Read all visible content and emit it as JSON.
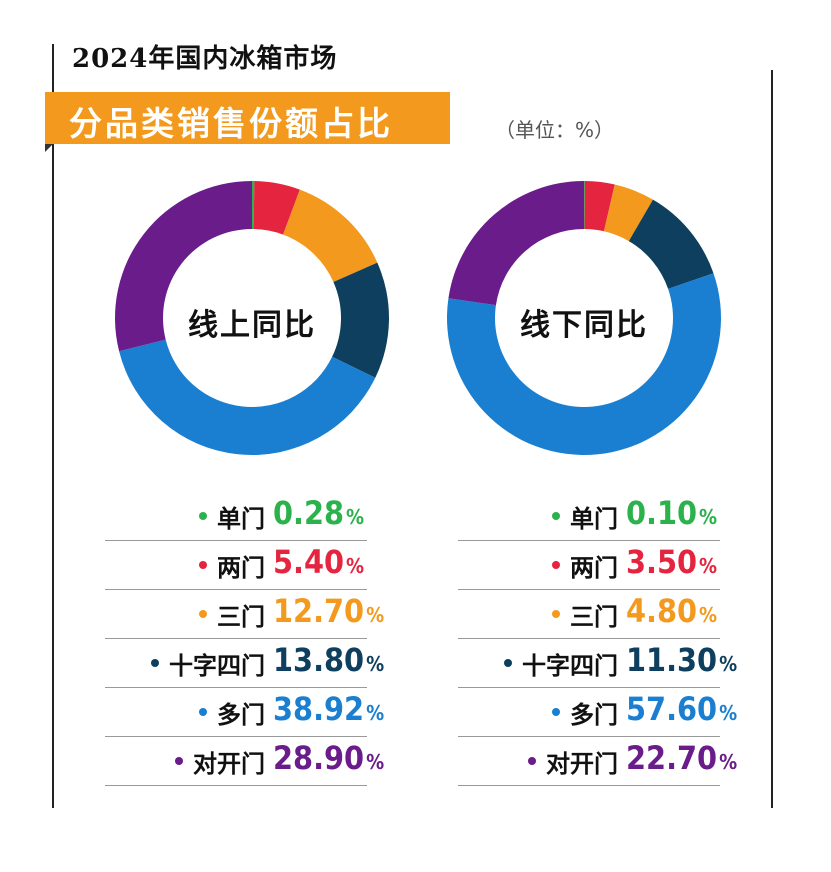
{
  "header": {
    "title": "2024年国内冰箱市场",
    "banner": "分品类销售份额占比",
    "unit": "（单位：%）"
  },
  "percent_sign": "%",
  "chart_data": [
    {
      "type": "pie",
      "title": "线上同比",
      "categories": [
        "单门",
        "两门",
        "三门",
        "十字四门",
        "多门",
        "对开门"
      ],
      "values": [
        0.28,
        5.4,
        12.7,
        13.8,
        38.92,
        28.9
      ],
      "value_labels": [
        "0.28",
        "5.40",
        "12.70",
        "13.80",
        "38.92",
        "28.90"
      ],
      "colors": [
        "#2bb24c",
        "#e5243f",
        "#f39a1e",
        "#0e3f5e",
        "#1a7fd0",
        "#6a1c8a"
      ]
    },
    {
      "type": "pie",
      "title": "线下同比",
      "categories": [
        "单门",
        "两门",
        "三门",
        "十字四门",
        "多门",
        "对开门"
      ],
      "values": [
        0.1,
        3.5,
        4.8,
        11.3,
        57.6,
        22.7
      ],
      "value_labels": [
        "0.10",
        "3.50",
        "4.80",
        "11.30",
        "57.60",
        "22.70"
      ],
      "colors": [
        "#2bb24c",
        "#e5243f",
        "#f39a1e",
        "#0e3f5e",
        "#1a7fd0",
        "#6a1c8a"
      ]
    }
  ]
}
